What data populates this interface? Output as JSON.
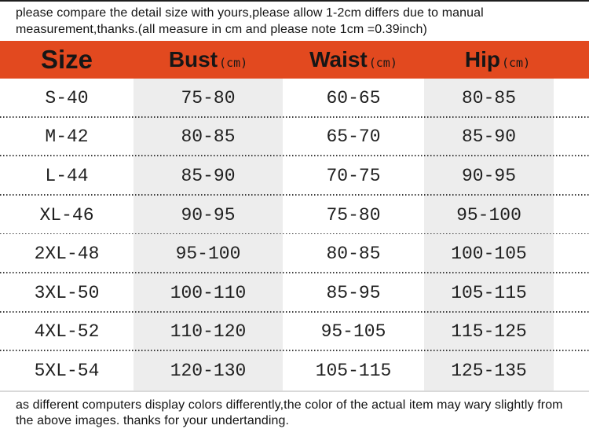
{
  "notes": {
    "top": "please compare the detail size with yours,please allow 1-2cm differs due to manual measurement,thanks.(all measure in cm and please note 1cm =0.39inch)",
    "bottom": "as different computers display colors differently,the color of the actual item may wary slightly from the above images. thanks for your undertanding."
  },
  "chart_data": {
    "type": "table",
    "columns": [
      {
        "label": "Size",
        "unit": ""
      },
      {
        "label": "Bust",
        "unit": "(cm)"
      },
      {
        "label": "Waist",
        "unit": "(cm)"
      },
      {
        "label": "Hip",
        "unit": "(cm)"
      }
    ],
    "rows": [
      [
        "S-40",
        "75-80",
        "60-65",
        "80-85"
      ],
      [
        "M-42",
        "80-85",
        "65-70",
        "85-90"
      ],
      [
        "L-44",
        "85-90",
        "70-75",
        "90-95"
      ],
      [
        "XL-46",
        "90-95",
        "75-80",
        "95-100"
      ],
      [
        "2XL-48",
        "95-100",
        "80-85",
        "100-105"
      ],
      [
        "3XL-50",
        "100-110",
        "85-95",
        "105-115"
      ],
      [
        "4XL-52",
        "110-120",
        "95-105",
        "115-125"
      ],
      [
        "5XL-54",
        "120-130",
        "105-115",
        "125-135"
      ]
    ],
    "layout_hints": {
      "shaded_columns": [
        "Bust",
        "Hip"
      ],
      "row_separator": "dotted",
      "legend_position": "none",
      "grid": "off"
    }
  },
  "colors": {
    "header_bg": "#E2491F",
    "shaded_column_bg": "#EDEDED",
    "text": "#1d1d1d",
    "dotted_separator": "#3b3b3b",
    "top_rule": "#1e1e1e",
    "bottom_rule": "#d9d9d9"
  }
}
